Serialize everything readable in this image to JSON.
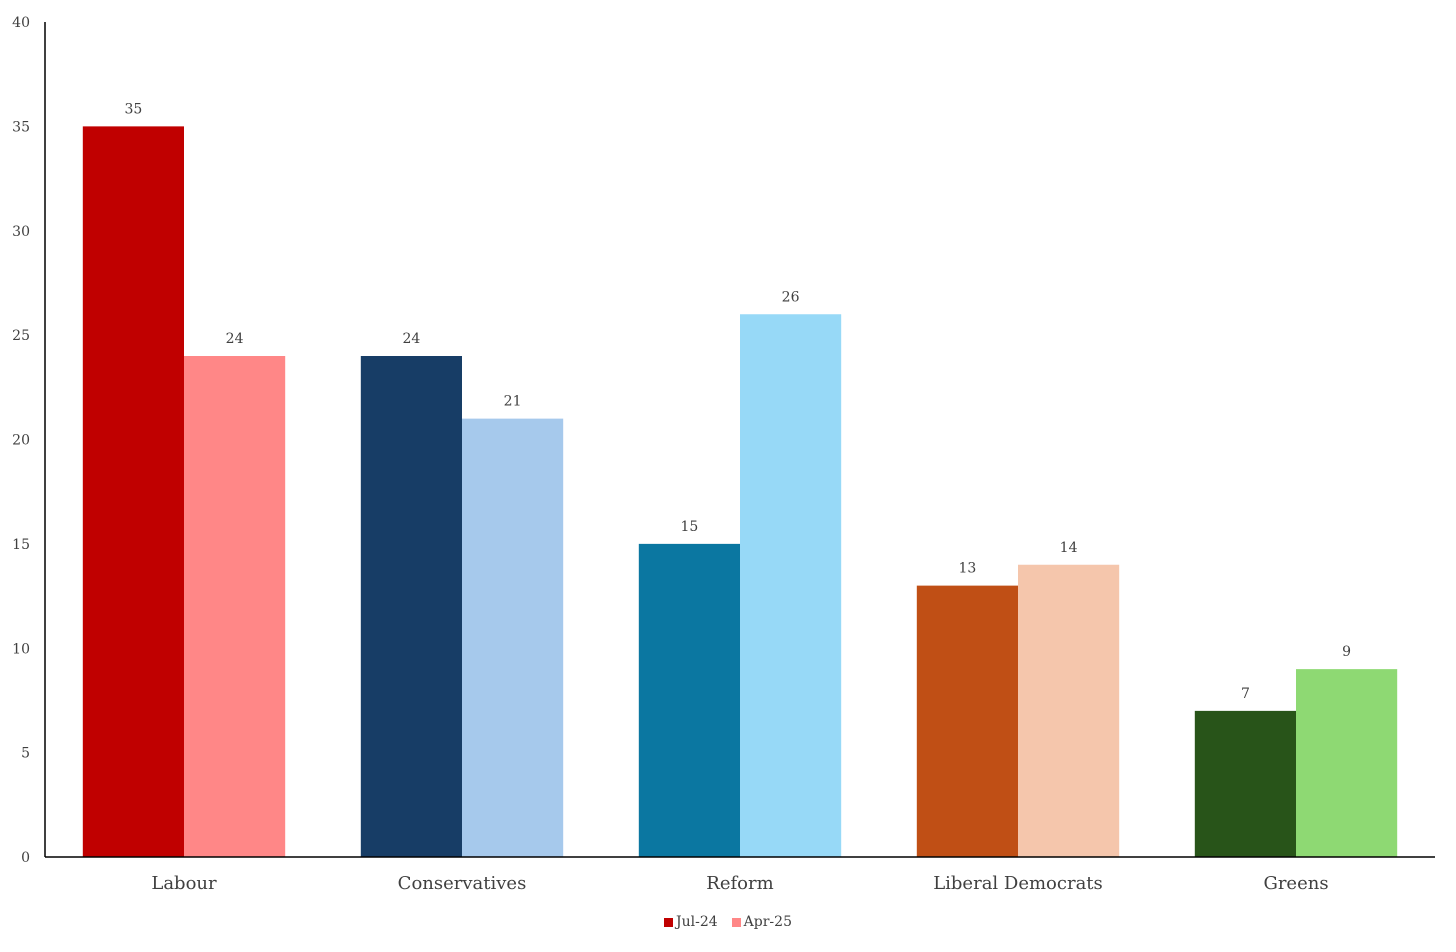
{
  "chart_data": {
    "type": "bar",
    "title": "",
    "xlabel": "",
    "ylabel": "",
    "ylim": [
      0,
      40
    ],
    "yticks": [
      0,
      5,
      10,
      15,
      20,
      25,
      30,
      35,
      40
    ],
    "grid": false,
    "legend_position": "bottom",
    "categories": [
      "Labour",
      "Conservatives",
      "Reform",
      "Liberal Democrats",
      "Greens"
    ],
    "series": [
      {
        "name": "Jul-24",
        "values": [
          35,
          24,
          15,
          13,
          7
        ],
        "legend_color": "#c00000",
        "colors": [
          "#c00000",
          "#173d66",
          "#0b77a1",
          "#c04f15",
          "#285419"
        ]
      },
      {
        "name": "Apr-25",
        "values": [
          24,
          21,
          26,
          14,
          9
        ],
        "legend_color": "#ff8787",
        "colors": [
          "#ff8787",
          "#a6c9ec",
          "#97d9f7",
          "#f5c6ac",
          "#8ed973"
        ]
      }
    ],
    "data_labels": true
  }
}
